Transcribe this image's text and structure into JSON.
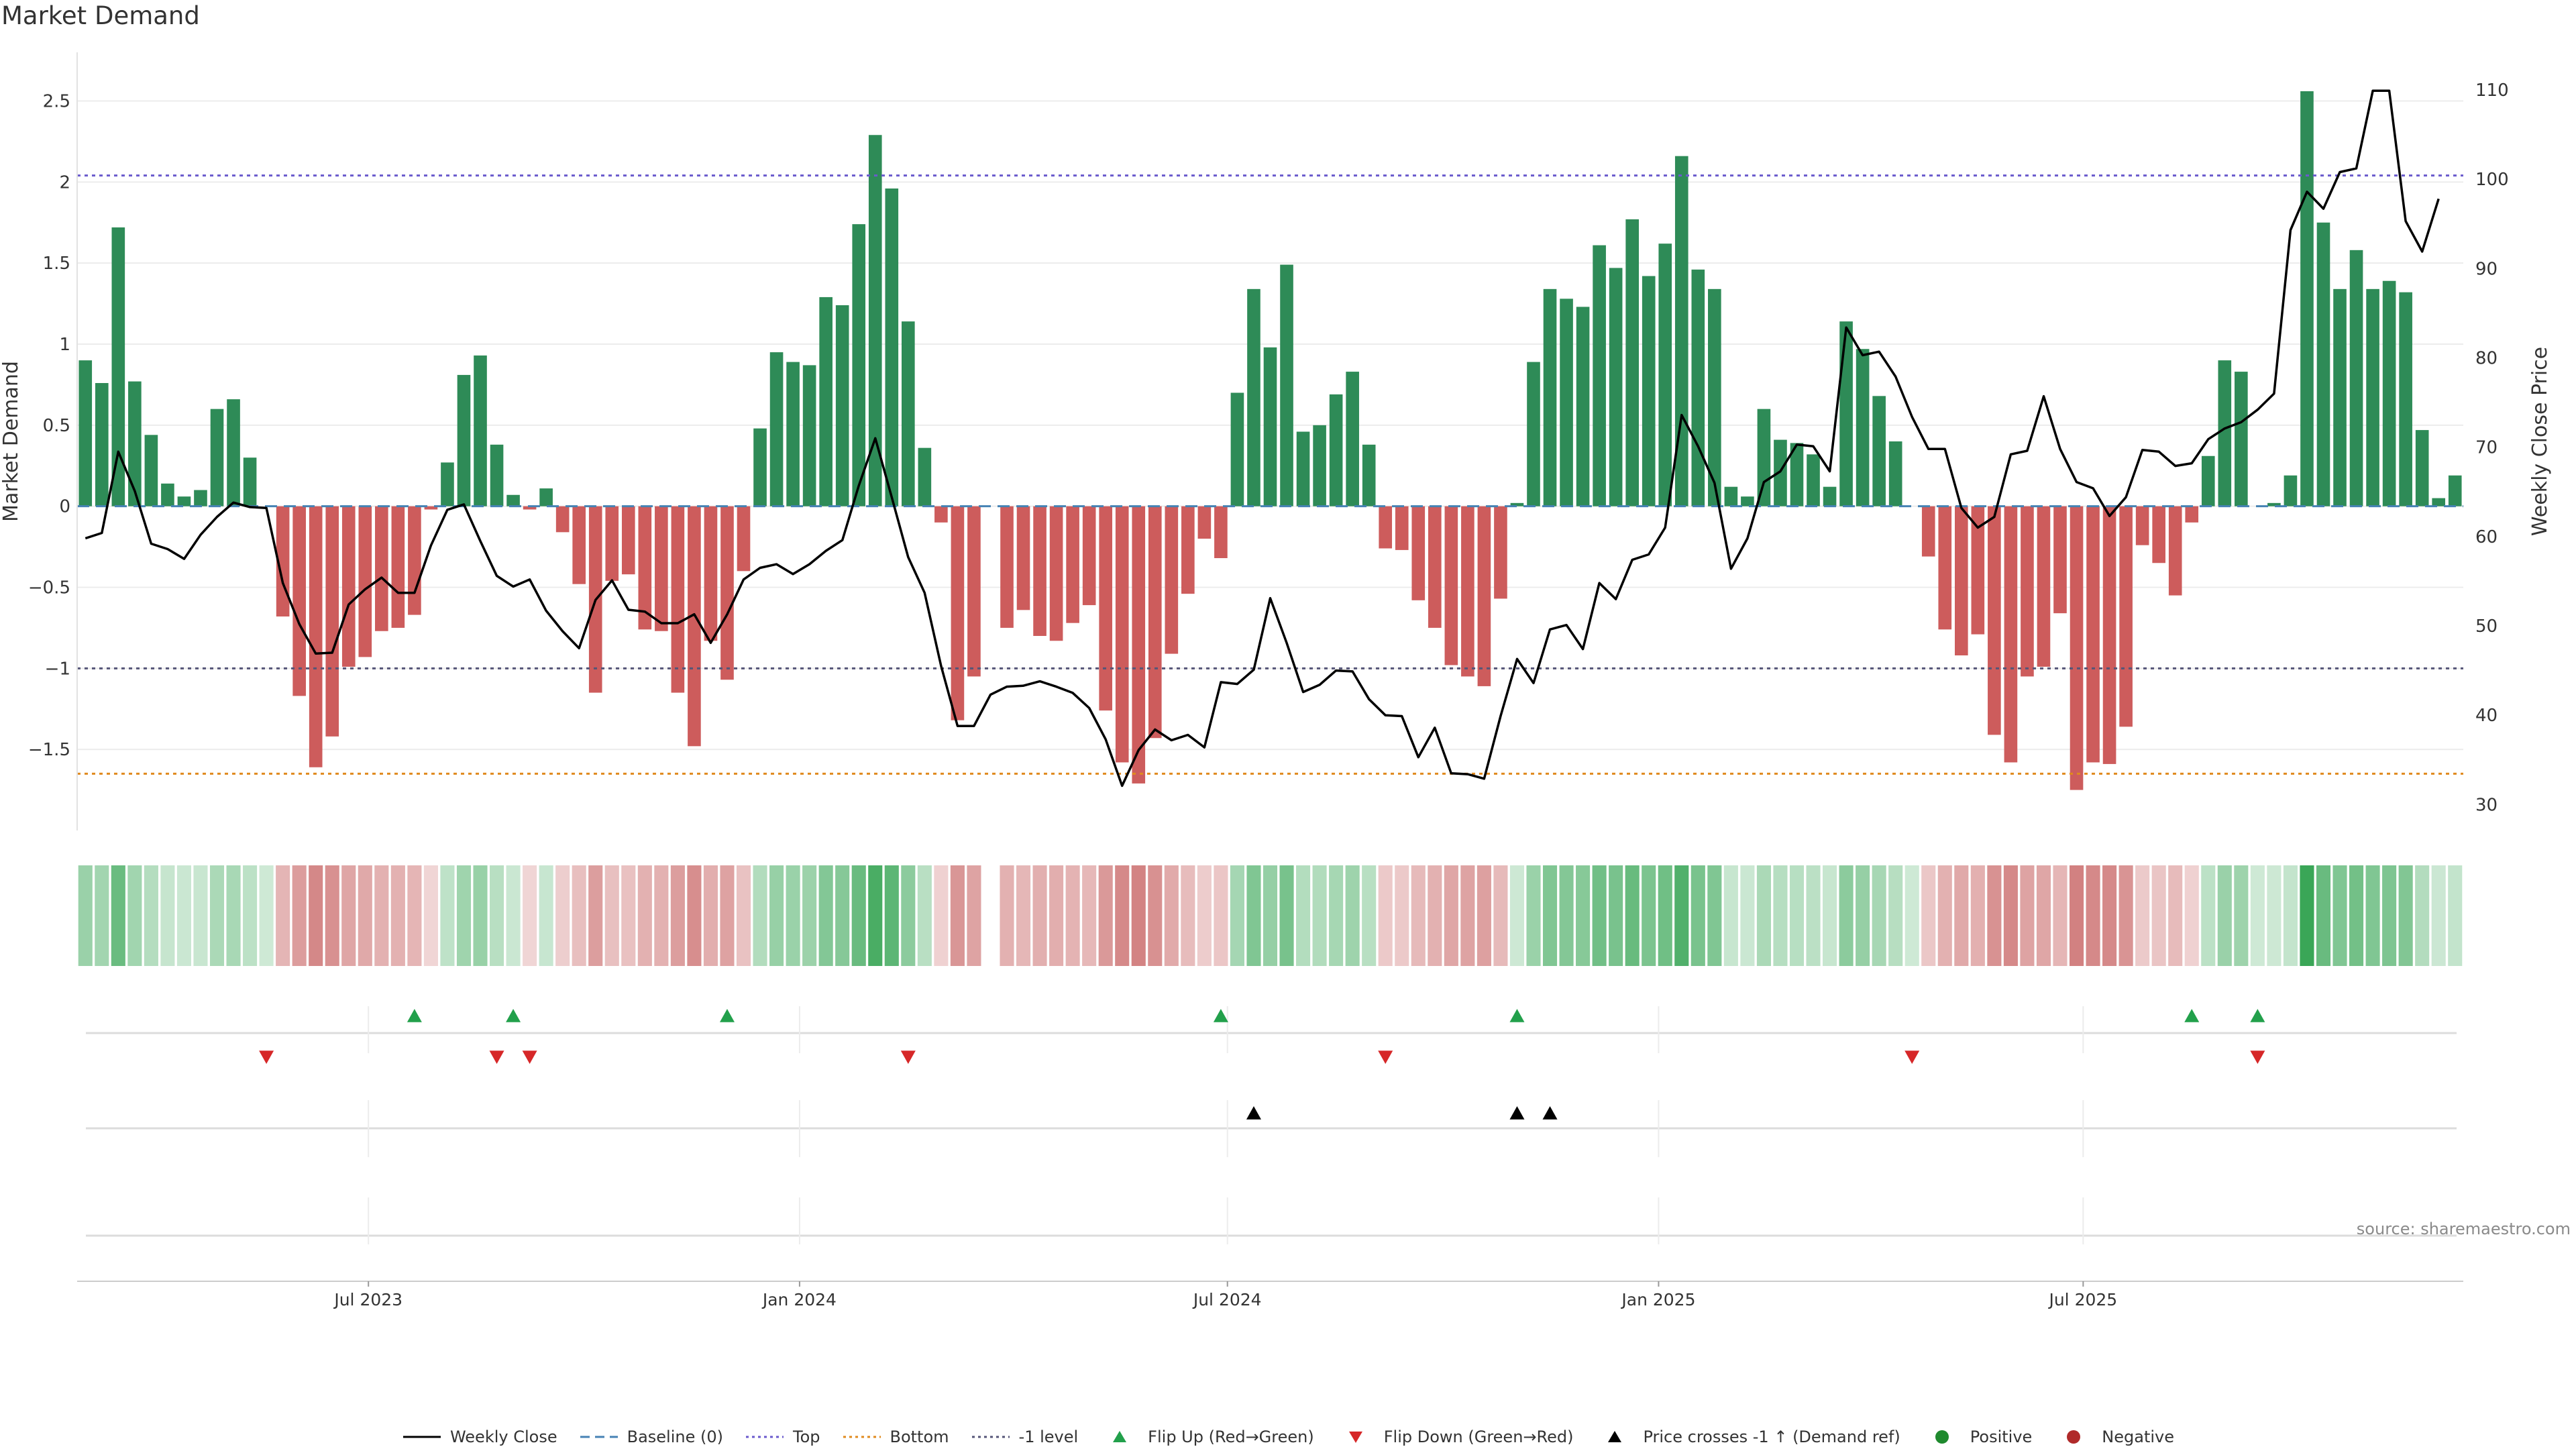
{
  "title": "Market Demand",
  "source": "source: sharemaestro.com",
  "colors": {
    "positive": "#2e8b57",
    "negative": "#cd5c5c",
    "price": "#000000",
    "baseline": "#4682b4",
    "top": "#6a5acd",
    "bottom": "#e08a1e",
    "minus_one": "#555577",
    "flip_up": "#22a04b",
    "flip_down": "#d62728"
  },
  "chart_data": {
    "type": "bar+line",
    "x_start": "2023-03-01",
    "x_step_days": 7,
    "series": [
      {
        "name": "Market Demand",
        "axis": "left",
        "values": [
          0.9,
          0.76,
          1.72,
          0.77,
          0.44,
          0.14,
          0.06,
          0.1,
          0.6,
          0.66,
          0.3,
          0,
          -0.68,
          -1.17,
          -1.61,
          -1.42,
          -0.99,
          -0.93,
          -0.77,
          -0.75,
          -0.67,
          -0.02,
          0.27,
          0.81,
          0.93,
          0.38,
          0.07,
          -0.02,
          0.11,
          -0.16,
          -0.48,
          -1.15,
          -0.46,
          -0.42,
          -0.76,
          -0.77,
          -1.15,
          -1.48,
          -0.83,
          -1.07,
          -0.4,
          0.48,
          0.95,
          0.89,
          0.87,
          1.29,
          1.24,
          1.74,
          2.29,
          1.96,
          1.14,
          0.36,
          -0.1,
          -1.32,
          -1.05,
          0,
          -0.75,
          -0.64,
          -0.8,
          -0.83,
          -0.72,
          -0.61,
          -1.26,
          -1.58,
          -1.71,
          -1.43,
          -0.91,
          -0.54,
          -0.2,
          -0.32,
          0.7,
          1.34,
          0.98,
          1.49,
          0.46,
          0.5,
          0.69,
          0.83,
          0.38,
          -0.26,
          -0.27,
          -0.58,
          -0.75,
          -0.98,
          -1.05,
          -1.11,
          -0.57,
          0.02,
          0.89,
          1.34,
          1.28,
          1.23,
          1.61,
          1.47,
          1.77,
          1.42,
          1.62,
          2.16,
          1.46,
          1.34,
          0.12,
          0.06,
          0.6,
          0.41,
          0.39,
          0.32,
          0.12,
          1.14,
          0.97,
          0.68,
          0.4,
          0,
          -0.31,
          -0.76,
          -0.92,
          -0.79,
          -1.41,
          -1.58,
          -1.05,
          -0.99,
          -0.66,
          -1.75,
          -1.58,
          -1.59,
          -1.36,
          -0.24,
          -0.35,
          -0.55,
          -0.1,
          0.31,
          0.9,
          0.83,
          0,
          0.02,
          0.19,
          2.56,
          1.75,
          1.34,
          1.58,
          1.34,
          1.39,
          1.32,
          0.47,
          0.05,
          0.19
        ]
      },
      {
        "name": "Weekly Close",
        "axis": "right",
        "values": [
          59.8,
          60.4,
          69.5,
          65.1,
          59.2,
          58.6,
          57.5,
          60.2,
          62.2,
          63.8,
          63.3,
          63.2,
          54.8,
          50.2,
          46.9,
          47,
          52.4,
          54.1,
          55.4,
          53.7,
          53.7,
          59,
          63,
          63.6,
          59.5,
          55.6,
          54.4,
          55.2,
          51.7,
          49.4,
          47.5,
          52.9,
          55.1,
          51.8,
          51.6,
          50.3,
          50.3,
          51.3,
          48.1,
          51.3,
          55.2,
          56.5,
          56.9,
          55.8,
          56.9,
          58.4,
          59.6,
          65.7,
          71,
          64.4,
          57.7,
          53.7,
          45.5,
          38.8,
          38.8,
          42.3,
          43.2,
          43.3,
          43.8,
          43.2,
          42.5,
          40.8,
          37.3,
          32.1,
          36.1,
          38.4,
          37.2,
          37.8,
          36.4,
          43.7,
          43.5,
          45.1,
          53.1,
          48.1,
          42.6,
          43.4,
          45,
          44.9,
          41.8,
          40,
          39.9,
          35.3,
          38.6,
          33.5,
          33.4,
          32.9,
          39.9,
          46.3,
          43.6,
          49.6,
          50.1,
          47.4,
          54.8,
          53,
          57.4,
          58,
          61,
          73.6,
          70.1,
          66,
          56.4,
          59.8,
          66.1,
          67.3,
          70.3,
          70.1,
          67.3,
          83.4,
          80.3,
          80.7,
          77.9,
          73.4,
          69.8,
          69.8,
          63.2,
          61,
          62.2,
          69.2,
          69.6,
          75.7,
          69.8,
          66.1,
          65.4,
          62.3,
          64.4,
          69.7,
          69.5,
          67.9,
          68.2,
          70.9,
          72.1,
          72.8,
          74.2,
          76,
          94.3,
          98.6,
          96.7,
          100.8,
          101.2,
          109.9,
          109.9,
          95.3,
          91.9,
          97.8
        ]
      }
    ],
    "y_left": {
      "label": "Market Demand",
      "range": [
        -2.0,
        2.8
      ],
      "ticks": [
        2.5,
        2,
        1.5,
        1,
        0.5,
        0,
        -0.5,
        -1,
        -1.5
      ],
      "tick_labels": [
        "2.5",
        "2",
        "1.5",
        "1",
        "0.5",
        "0",
        "−0.5",
        "−1",
        "−1.5"
      ]
    },
    "y_right": {
      "label": "Weekly Close Price",
      "range": [
        27.1,
        114.2
      ],
      "ticks": [
        110,
        100,
        90,
        80,
        70,
        60,
        50,
        40,
        30
      ],
      "tick_labels": [
        "110",
        "100",
        "90",
        "80",
        "70",
        "60",
        "50",
        "40",
        "30"
      ]
    },
    "reference_lines": {
      "baseline": 0,
      "top": 2.04,
      "bottom": -1.65,
      "minus_one": -1.0
    },
    "x_ticks": [
      {
        "label": "Jul 2023",
        "index": 17.7
      },
      {
        "label": "Jan 2024",
        "index": 43.9
      },
      {
        "label": "Jul 2024",
        "index": 69.9
      },
      {
        "label": "Jan 2025",
        "index": 96.1
      },
      {
        "label": "Jul 2025",
        "index": 121.9
      }
    ],
    "heat_gap_index": 55,
    "flip_up_indices": [
      20,
      26,
      39,
      69,
      87,
      128,
      132
    ],
    "flip_down_indices": [
      11,
      25,
      27,
      50,
      79,
      111,
      132
    ],
    "price_cross_indices": [
      71,
      87,
      89
    ],
    "legend": [
      {
        "label": "Weekly Close",
        "key": "line-solid"
      },
      {
        "label": "Baseline (0)",
        "key": "line-dashed-blue"
      },
      {
        "label": "Top",
        "key": "line-dotted-purple"
      },
      {
        "label": "Bottom",
        "key": "line-dotted-orange"
      },
      {
        "label": "-1 level",
        "key": "line-dotted-gray"
      },
      {
        "label": "Flip Up (Red→Green)",
        "key": "triangle-up-green"
      },
      {
        "label": "Flip Down (Green→Red)",
        "key": "triangle-down-red"
      },
      {
        "label": "Price crosses -1 ↑ (Demand ref)",
        "key": "triangle-up-black"
      },
      {
        "label": "Positive",
        "key": "circle-green"
      },
      {
        "label": "Negative",
        "key": "circle-red"
      }
    ]
  }
}
